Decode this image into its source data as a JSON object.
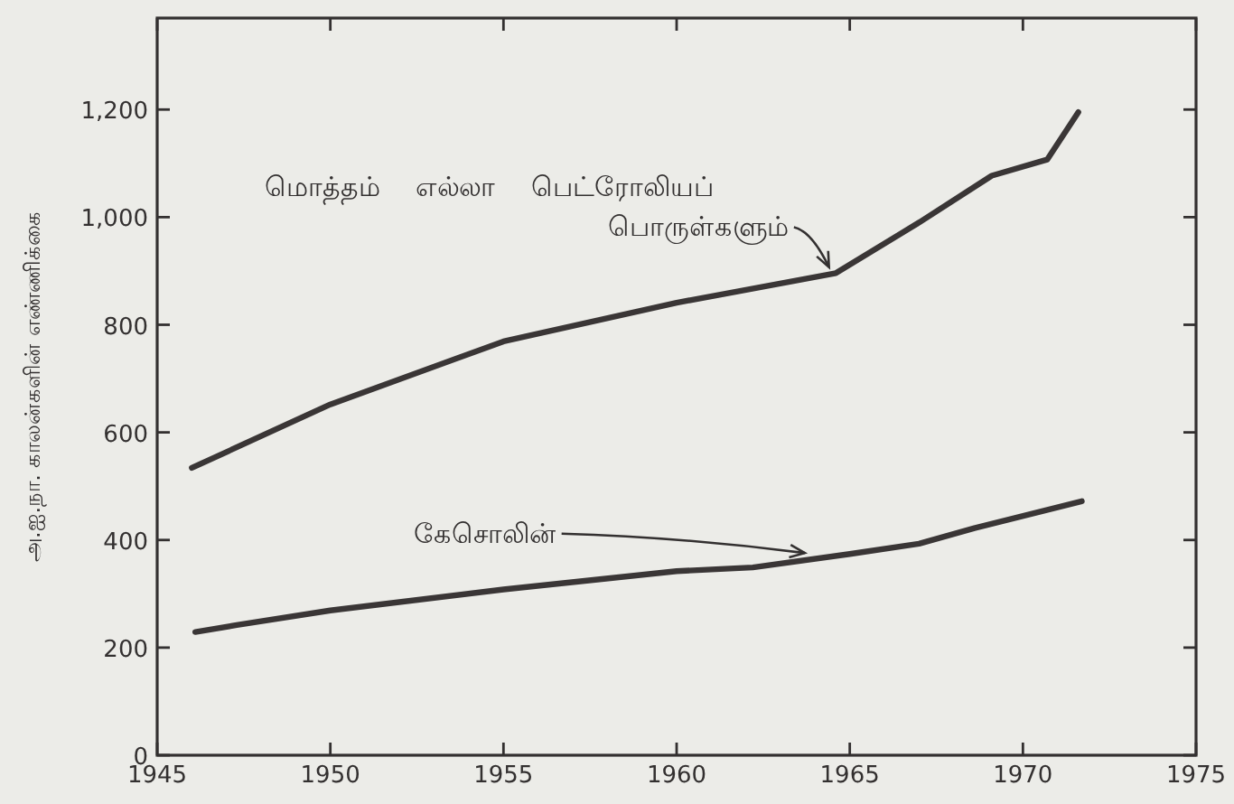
{
  "chart_data": {
    "type": "line",
    "ylabel": "அ.ஐ.நா. காலன்களின் எண்ணிக்கை",
    "xlim": [
      1945,
      1975
    ],
    "xticks": [
      1945,
      1950,
      1955,
      1960,
      1965,
      1970,
      1975
    ],
    "ylim": [
      0,
      1370
    ],
    "yticks": [
      0,
      200,
      400,
      600,
      800,
      {
        "value": 1000,
        "label": "1,000"
      },
      {
        "value": 1200,
        "label": "1,200"
      }
    ],
    "series": [
      {
        "name": "மொத்தம் எல்லா பெட்ரோலியப் பொருள்களும்",
        "color": "#3a3636",
        "x": [
          1946.0,
          1950,
          1955,
          1960,
          1964.6,
          1967,
          1969.1,
          1970.7,
          1971.6
        ],
        "values": [
          534,
          652,
          769,
          841,
          896,
          990,
          1077,
          1107,
          1195
        ]
      },
      {
        "name": "கேசொலின்",
        "color": "#3a3636",
        "x": [
          1946.1,
          1947.3,
          1950,
          1955,
          1960,
          1962.2,
          1965,
          1967,
          1968.6,
          1971.7
        ],
        "values": [
          229,
          242,
          269,
          308,
          342,
          349,
          374,
          393,
          422,
          472
        ]
      }
    ]
  }
}
